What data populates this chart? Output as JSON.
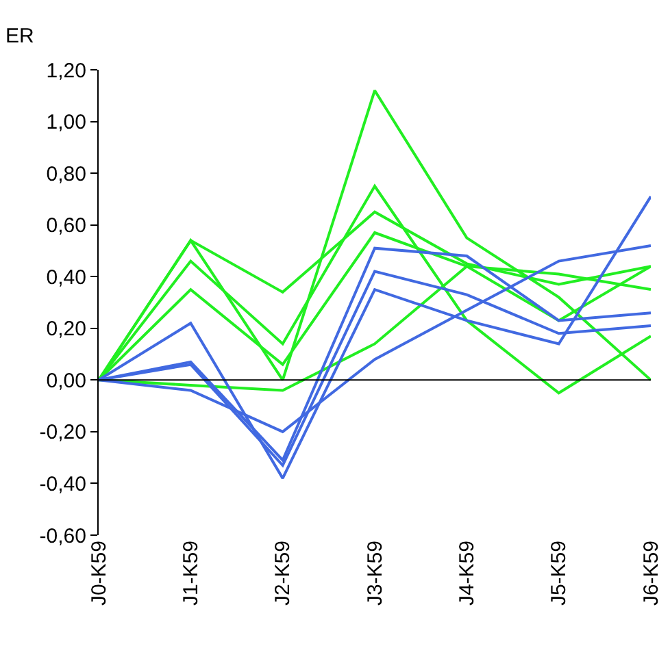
{
  "chart_data": {
    "type": "line",
    "ylabel": "ER",
    "categories": [
      "J0-K59",
      "J1-K59",
      "J2-K59",
      "J3-K59",
      "J4-K59",
      "J5-K59",
      "J6-K59"
    ],
    "series": [
      {
        "color": "#22ee22",
        "values": [
          0,
          0.54,
          0.0,
          1.12,
          0.55,
          0.32,
          0.0
        ]
      },
      {
        "color": "#22ee22",
        "values": [
          0,
          0.46,
          0.14,
          0.75,
          0.23,
          -0.05,
          0.17
        ]
      },
      {
        "color": "#22ee22",
        "values": [
          0,
          0.54,
          0.34,
          0.65,
          0.45,
          0.37,
          0.44
        ]
      },
      {
        "color": "#22ee22",
        "values": [
          0,
          0.35,
          0.06,
          0.57,
          0.44,
          0.41,
          0.35
        ]
      },
      {
        "color": "#22ee22",
        "values": [
          0,
          -0.02,
          -0.04,
          0.14,
          0.44,
          0.23,
          0.44
        ]
      },
      {
        "color": "#4169e1",
        "values": [
          0,
          0.07,
          -0.31,
          0.51,
          0.48,
          0.23,
          0.26
        ]
      },
      {
        "color": "#4169e1",
        "values": [
          0,
          0.06,
          -0.33,
          0.42,
          0.33,
          0.18,
          0.21
        ]
      },
      {
        "color": "#4169e1",
        "values": [
          0,
          0.22,
          -0.38,
          0.35,
          0.23,
          0.14,
          0.71
        ]
      },
      {
        "color": "#4169e1",
        "values": [
          0,
          -0.04,
          -0.2,
          0.08,
          0.27,
          0.46,
          0.52
        ]
      }
    ],
    "ylim": [
      -0.6,
      1.2
    ],
    "yticks": [
      {
        "value": -0.6,
        "label": "-0,60"
      },
      {
        "value": -0.4,
        "label": "-0,40"
      },
      {
        "value": -0.2,
        "label": "-0,20"
      },
      {
        "value": 0,
        "label": "0,00"
      },
      {
        "value": 0.2,
        "label": "0,20"
      },
      {
        "value": 0.4,
        "label": "0,40"
      },
      {
        "value": 0.6,
        "label": "0,60"
      },
      {
        "value": 0.8,
        "label": "0,80"
      },
      {
        "value": 1.0,
        "label": "1,00"
      },
      {
        "value": 1.2,
        "label": "1,20"
      }
    ],
    "ref_lines": [
      {
        "axis": "y",
        "value": 0,
        "color": "#000000"
      }
    ],
    "marker": "none",
    "line_style": "solid"
  }
}
